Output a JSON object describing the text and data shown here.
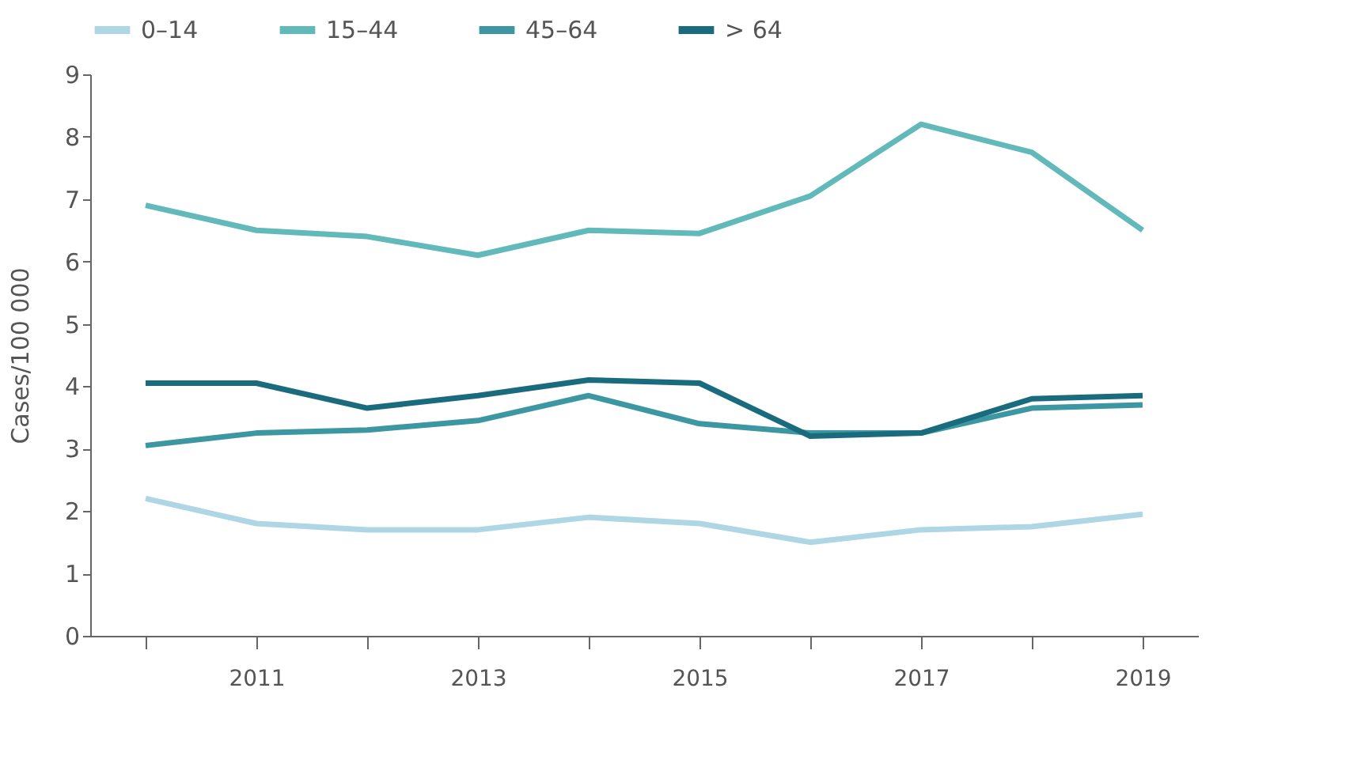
{
  "chart_data": {
    "type": "line",
    "ylabel": "Cases/100 000",
    "categories": [
      null,
      "2011",
      null,
      "2013",
      null,
      "2015",
      null,
      "2017",
      null,
      "2019"
    ],
    "ylim": [
      0,
      9
    ],
    "yticks": [
      0,
      1,
      2,
      3,
      4,
      5,
      6,
      7,
      8,
      9
    ],
    "grid": false,
    "legend": "top",
    "marker": "none",
    "line_style": "solid",
    "series": [
      {
        "name": "0–14",
        "color": "#aed6e4",
        "values": [
          2.2,
          1.8,
          1.7,
          1.7,
          1.9,
          1.8,
          1.5,
          1.7,
          1.75,
          1.95
        ]
      },
      {
        "name": "15–44",
        "color": "#62b9b9",
        "values": [
          6.9,
          6.5,
          6.4,
          6.1,
          6.5,
          6.45,
          7.05,
          8.2,
          7.75,
          6.5
        ]
      },
      {
        "name": "45–64",
        "color": "#3d97a3",
        "values": [
          3.05,
          3.25,
          3.3,
          3.45,
          3.85,
          3.4,
          3.25,
          3.25,
          3.65,
          3.7
        ]
      },
      {
        "name": "> 64",
        "color": "#1a6b7e",
        "values": [
          4.05,
          4.05,
          3.65,
          3.85,
          4.1,
          4.05,
          3.2,
          3.25,
          3.8,
          3.85
        ]
      }
    ]
  }
}
